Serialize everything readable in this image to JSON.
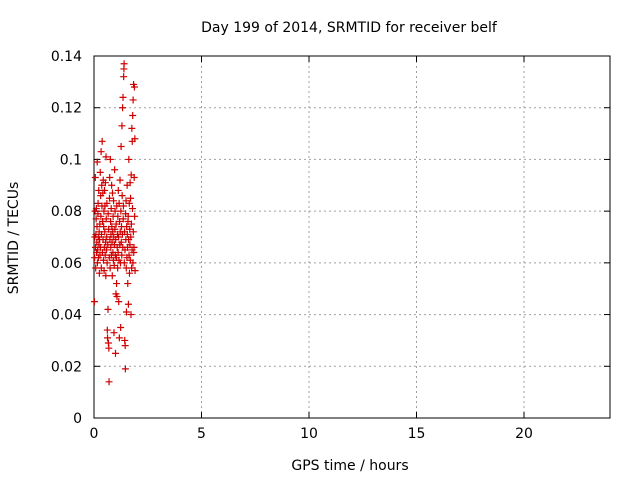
{
  "chart_data": {
    "type": "scatter",
    "title": "Day 199 of 2014, SRMTID for receiver belf",
    "xlabel": "GPS time / hours",
    "ylabel": "SRMTID / TECUs",
    "xlim": [
      0,
      24
    ],
    "ylim": [
      0,
      0.14
    ],
    "xticks": [
      0,
      5,
      10,
      15,
      20
    ],
    "xtick_labels": [
      "0",
      "5",
      "10",
      "15",
      "20"
    ],
    "yticks": [
      0,
      0.02,
      0.04,
      0.06,
      0.08,
      0.1,
      0.12,
      0.14
    ],
    "ytick_labels": [
      "0",
      "0.02",
      "0.04",
      "0.06",
      "0.08",
      "0.1",
      "0.12",
      "0.14"
    ],
    "grid": true,
    "marker": "plus",
    "color": "#d00000",
    "points": [
      [
        0.02,
        0.045
      ],
      [
        0.03,
        0.062
      ],
      [
        0.04,
        0.07
      ],
      [
        0.05,
        0.08
      ],
      [
        0.06,
        0.093
      ],
      [
        0.07,
        0.066
      ],
      [
        0.08,
        0.058
      ],
      [
        0.09,
        0.071
      ],
      [
        0.1,
        0.077
      ],
      [
        0.11,
        0.081
      ],
      [
        0.12,
        0.064
      ],
      [
        0.13,
        0.068
      ],
      [
        0.14,
        0.074
      ],
      [
        0.15,
        0.099
      ],
      [
        0.16,
        0.06
      ],
      [
        0.17,
        0.065
      ],
      [
        0.18,
        0.079
      ],
      [
        0.19,
        0.083
      ],
      [
        0.2,
        0.07
      ],
      [
        0.21,
        0.062
      ],
      [
        0.22,
        0.088
      ],
      [
        0.23,
        0.067
      ],
      [
        0.24,
        0.072
      ],
      [
        0.25,
        0.056
      ],
      [
        0.26,
        0.069
      ],
      [
        0.27,
        0.075
      ],
      [
        0.28,
        0.063
      ],
      [
        0.29,
        0.095
      ],
      [
        0.3,
        0.066
      ],
      [
        0.31,
        0.086
      ],
      [
        0.32,
        0.078
      ],
      [
        0.33,
        0.103
      ],
      [
        0.34,
        0.058
      ],
      [
        0.35,
        0.071
      ],
      [
        0.36,
        0.09
      ],
      [
        0.37,
        0.082
      ],
      [
        0.38,
        0.107
      ],
      [
        0.39,
        0.064
      ],
      [
        0.4,
        0.076
      ],
      [
        0.41,
        0.087
      ],
      [
        0.42,
        0.069
      ],
      [
        0.43,
        0.092
      ],
      [
        0.44,
        0.061
      ],
      [
        0.45,
        0.074
      ],
      [
        0.46,
        0.08
      ],
      [
        0.47,
        0.057
      ],
      [
        0.48,
        0.066
      ],
      [
        0.49,
        0.088
      ],
      [
        0.5,
        0.072
      ],
      [
        0.51,
        0.082
      ],
      [
        0.52,
        0.063
      ],
      [
        0.53,
        0.091
      ],
      [
        0.54,
        0.068
      ],
      [
        0.55,
        0.055
      ],
      [
        0.56,
        0.101
      ],
      [
        0.57,
        0.077
      ],
      [
        0.58,
        0.065
      ],
      [
        0.59,
        0.07
      ],
      [
        0.6,
        0.083
      ],
      [
        0.61,
        0.06
      ],
      [
        0.62,
        0.034
      ],
      [
        0.63,
        0.031
      ],
      [
        0.64,
        0.067
      ],
      [
        0.65,
        0.042
      ],
      [
        0.66,
        0.079
      ],
      [
        0.67,
        0.029
      ],
      [
        0.68,
        0.073
      ],
      [
        0.69,
        0.027
      ],
      [
        0.7,
        0.014
      ],
      [
        0.71,
        0.062
      ],
      [
        0.72,
        0.085
      ],
      [
        0.73,
        0.093
      ],
      [
        0.74,
        0.069
      ],
      [
        0.75,
        0.058
      ],
      [
        0.76,
        0.1
      ],
      [
        0.77,
        0.076
      ],
      [
        0.78,
        0.066
      ],
      [
        0.79,
        0.071
      ],
      [
        0.8,
        0.081
      ],
      [
        0.81,
        0.063
      ],
      [
        0.82,
        0.09
      ],
      [
        0.83,
        0.074
      ],
      [
        0.84,
        0.068
      ],
      [
        0.85,
        0.055
      ],
      [
        0.86,
        0.087
      ],
      [
        0.87,
        0.072
      ],
      [
        0.88,
        0.064
      ],
      [
        0.89,
        0.078
      ],
      [
        0.9,
        0.061
      ],
      [
        0.91,
        0.084
      ],
      [
        0.92,
        0.07
      ],
      [
        0.93,
        0.033
      ],
      [
        0.94,
        0.059
      ],
      [
        0.95,
        0.067
      ],
      [
        0.96,
        0.096
      ],
      [
        0.97,
        0.073
      ],
      [
        0.98,
        0.08
      ],
      [
        0.99,
        0.063
      ],
      [
        1.0,
        0.025
      ],
      [
        1.01,
        0.069
      ],
      [
        1.02,
        0.048
      ],
      [
        1.03,
        0.075
      ],
      [
        1.04,
        0.062
      ],
      [
        1.05,
        0.052
      ],
      [
        1.06,
        0.082
      ],
      [
        1.07,
        0.047
      ],
      [
        1.08,
        0.066
      ],
      [
        1.09,
        0.071
      ],
      [
        1.1,
        0.058
      ],
      [
        1.11,
        0.078
      ],
      [
        1.12,
        0.064
      ],
      [
        1.13,
        0.088
      ],
      [
        1.14,
        0.07
      ],
      [
        1.15,
        0.045
      ],
      [
        1.16,
        0.061
      ],
      [
        1.17,
        0.083
      ],
      [
        1.18,
        0.031
      ],
      [
        1.19,
        0.076
      ],
      [
        1.2,
        0.067
      ],
      [
        1.21,
        0.092
      ],
      [
        1.22,
        0.072
      ],
      [
        1.23,
        0.06
      ],
      [
        1.24,
        0.035
      ],
      [
        1.25,
        0.08
      ],
      [
        1.26,
        0.105
      ],
      [
        1.27,
        0.068
      ],
      [
        1.28,
        0.074
      ],
      [
        1.29,
        0.063
      ],
      [
        1.3,
        0.113
      ],
      [
        1.31,
        0.086
      ],
      [
        1.32,
        0.071
      ],
      [
        1.33,
        0.12
      ],
      [
        1.34,
        0.066
      ],
      [
        1.35,
        0.124
      ],
      [
        1.36,
        0.077
      ],
      [
        1.37,
        0.082
      ],
      [
        1.38,
        0.132
      ],
      [
        1.39,
        0.135
      ],
      [
        1.4,
        0.137
      ],
      [
        1.41,
        0.06
      ],
      [
        1.42,
        0.072
      ],
      [
        1.43,
        0.03
      ],
      [
        1.44,
        0.065
      ],
      [
        1.45,
        0.028
      ],
      [
        1.46,
        0.019
      ],
      [
        1.47,
        0.079
      ],
      [
        1.48,
        0.069
      ],
      [
        1.49,
        0.084
      ],
      [
        1.5,
        0.058
      ],
      [
        1.51,
        0.041
      ],
      [
        1.52,
        0.074
      ],
      [
        1.53,
        0.062
      ],
      [
        1.54,
        0.09
      ],
      [
        1.55,
        0.071
      ],
      [
        1.56,
        0.066
      ],
      [
        1.57,
        0.052
      ],
      [
        1.58,
        0.076
      ],
      [
        1.59,
        0.078
      ],
      [
        1.6,
        0.044
      ],
      [
        1.61,
        0.069
      ],
      [
        1.62,
        0.1
      ],
      [
        1.63,
        0.063
      ],
      [
        1.64,
        0.083
      ],
      [
        1.65,
        0.056
      ],
      [
        1.66,
        0.073
      ],
      [
        1.67,
        0.067
      ],
      [
        1.68,
        0.091
      ],
      [
        1.69,
        0.061
      ],
      [
        1.7,
        0.085
      ],
      [
        1.71,
        0.07
      ],
      [
        1.72,
        0.04
      ],
      [
        1.73,
        0.094
      ],
      [
        1.74,
        0.075
      ],
      [
        1.75,
        0.058
      ],
      [
        1.76,
        0.112
      ],
      [
        1.77,
        0.065
      ],
      [
        1.78,
        0.107
      ],
      [
        1.79,
        0.081
      ],
      [
        1.8,
        0.117
      ],
      [
        1.81,
        0.06
      ],
      [
        1.82,
        0.123
      ],
      [
        1.83,
        0.072
      ],
      [
        1.84,
        0.129
      ],
      [
        1.85,
        0.064
      ],
      [
        1.86,
        0.066
      ],
      [
        1.87,
        0.093
      ],
      [
        1.88,
        0.128
      ],
      [
        1.89,
        0.078
      ],
      [
        1.9,
        0.108
      ],
      [
        1.91,
        0.057
      ]
    ]
  }
}
